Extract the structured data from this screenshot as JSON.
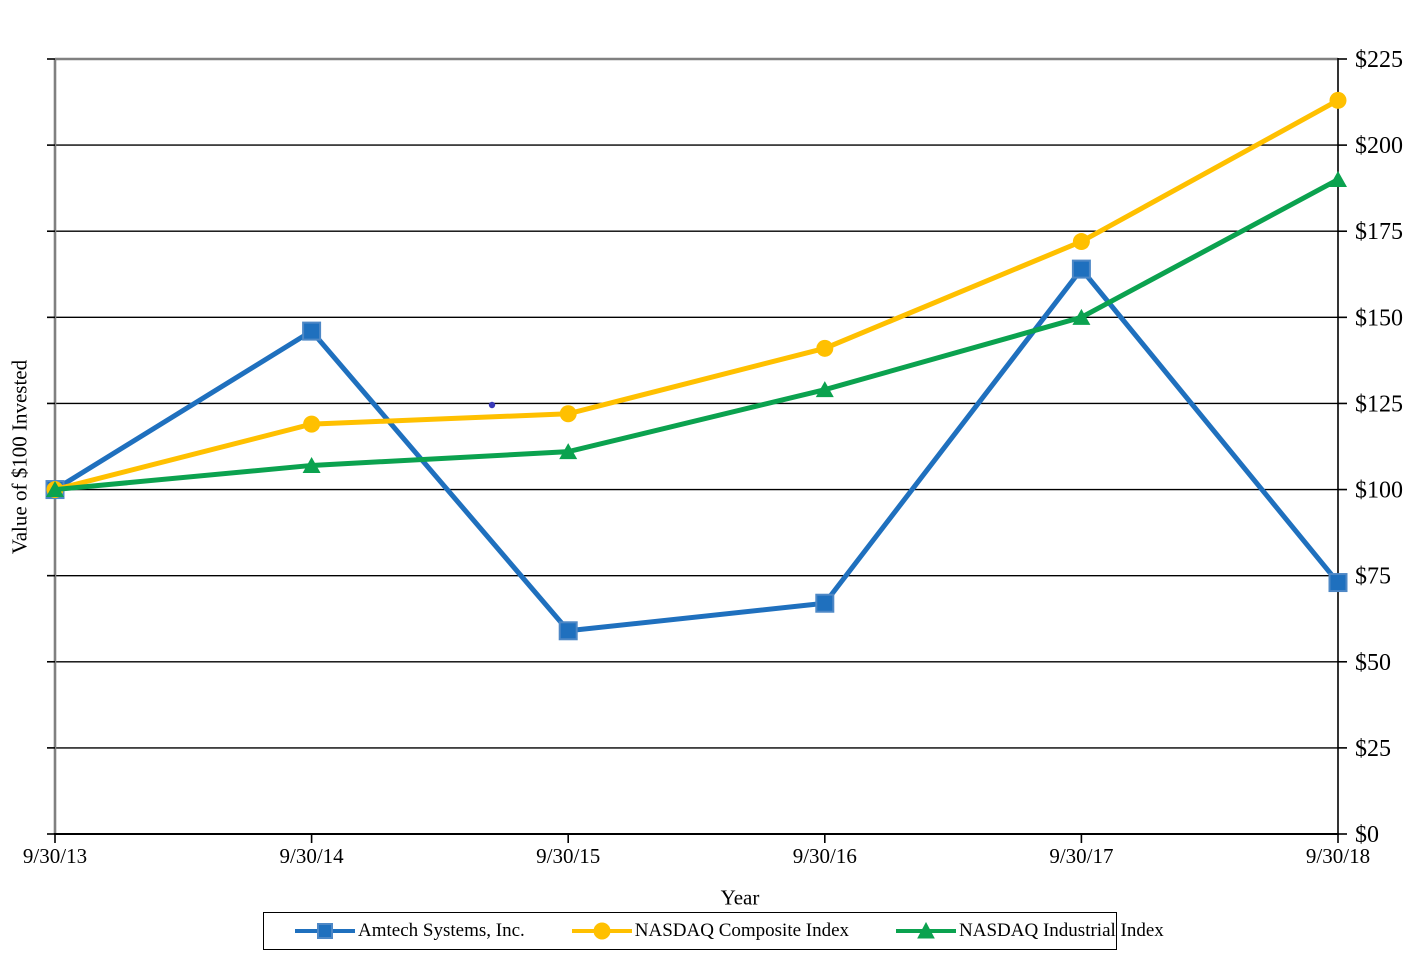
{
  "chart_data": {
    "type": "line",
    "title": "",
    "xlabel": "Year",
    "ylabel": "Value of $100 Invested",
    "categories": [
      "9/30/13",
      "9/30/14",
      "9/30/15",
      "9/30/16",
      "9/30/17",
      "9/30/18"
    ],
    "series": [
      {
        "name": "Amtech Systems, Inc.",
        "marker": "square",
        "color": "#1f70be",
        "marker_stroke": "#4e88c6",
        "values": [
          100,
          146,
          59,
          67,
          164,
          73
        ]
      },
      {
        "name": "NASDAQ Composite Index",
        "marker": "circle",
        "color": "#ffc000",
        "marker_stroke": "#ffc000",
        "values": [
          100,
          119,
          122,
          141,
          172,
          213
        ]
      },
      {
        "name": "NASDAQ Industrial Index",
        "marker": "triangle",
        "color": "#0ba24f",
        "marker_stroke": "#0ba24f",
        "values": [
          100,
          107,
          111,
          129,
          150,
          190
        ]
      }
    ],
    "ylim": [
      0,
      225
    ],
    "y_tick_step": 25,
    "y_tick_labels": [
      "$0",
      "$25",
      "$50",
      "$75",
      "$100",
      "$125",
      "$150",
      "$175",
      "$200",
      "$225"
    ],
    "grid": "horizontal",
    "y_axis_side": "right",
    "legend_position": "bottom"
  }
}
